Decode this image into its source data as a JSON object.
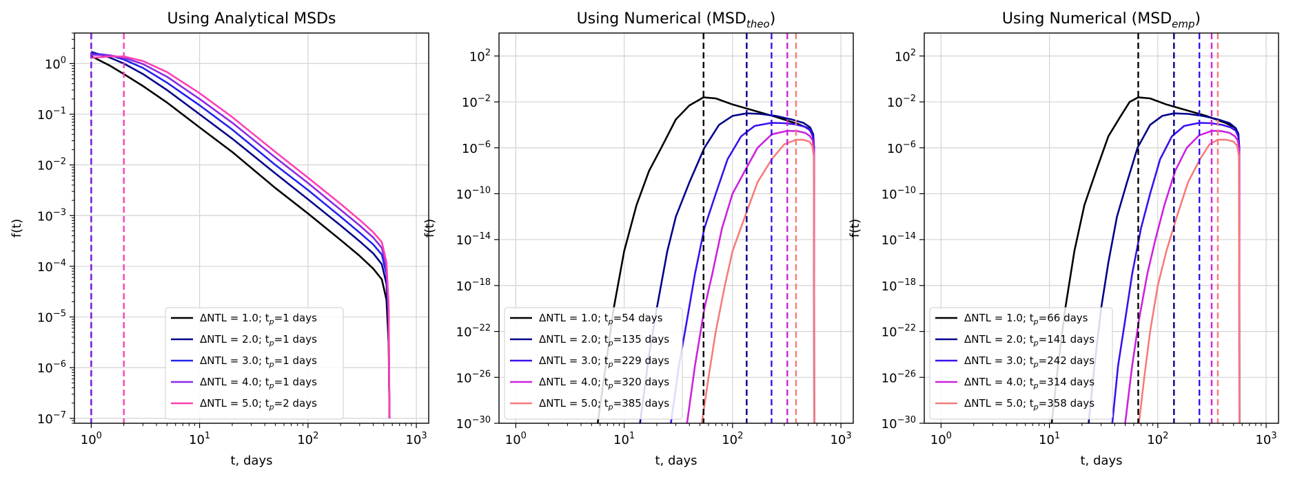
{
  "chart_data": [
    {
      "type": "line",
      "title": "Using Analytical MSDs",
      "title_main": "Using Analytical MSDs",
      "title_sub": "",
      "xlabel": "t, days",
      "ylabel": "f(t)",
      "xscale": "log",
      "yscale": "log",
      "xlim": [
        0.7,
        1300
      ],
      "ylim": [
        8e-08,
        4
      ],
      "xticks": [
        {
          "v": 1,
          "exp": "0"
        },
        {
          "v": 10,
          "exp": "1"
        },
        {
          "v": 100,
          "exp": "2"
        },
        {
          "v": 1000,
          "exp": "3"
        }
      ],
      "yticks": [
        {
          "v": 1e-07,
          "exp": "−7"
        },
        {
          "v": 1e-06,
          "exp": "−6"
        },
        {
          "v": 1e-05,
          "exp": "−5"
        },
        {
          "v": 0.0001,
          "exp": "−4"
        },
        {
          "v": 0.001,
          "exp": "−3"
        },
        {
          "v": 0.01,
          "exp": "−2"
        },
        {
          "v": 0.1,
          "exp": "−1"
        },
        {
          "v": 1,
          "exp": "0"
        }
      ],
      "grid": true,
      "legend_position": "lower-center",
      "series": [
        {
          "name": "ΔNTL = 1.0; tp=1 days",
          "label_main": "ΔNTL = 1.0; t",
          "label_tail": "=1 days",
          "color": "#000000",
          "peak": 1,
          "x": [
            1,
            1.5,
            2,
            3,
            5,
            10,
            20,
            50,
            100,
            200,
            300,
            400,
            480,
            530,
            555,
            565
          ],
          "y": [
            1.4,
            0.9,
            0.62,
            0.36,
            0.17,
            0.055,
            0.018,
            0.0035,
            0.0011,
            0.00033,
            0.00016,
            9e-05,
            5.5e-05,
            2.2e-05,
            3e-06,
            1e-07
          ]
        },
        {
          "name": "ΔNTL = 2.0; tp=1 days",
          "label_main": "ΔNTL = 2.0; t",
          "label_tail": "=1 days",
          "color": "#00008b",
          "peak": 1,
          "x": [
            1,
            1.5,
            2,
            3,
            5,
            10,
            20,
            50,
            100,
            200,
            300,
            400,
            480,
            530,
            555,
            565
          ],
          "y": [
            1.7,
            1.3,
            1.0,
            0.62,
            0.3,
            0.1,
            0.033,
            0.0068,
            0.0021,
            0.00064,
            0.00031,
            0.00018,
            0.00011,
            4.5e-05,
            6e-06,
            1e-07
          ]
        },
        {
          "name": "ΔNTL = 3.0; tp=1 days",
          "label_main": "ΔNTL = 3.0; t",
          "label_tail": "=1 days",
          "color": "#2222ee",
          "peak": 1,
          "x": [
            1,
            1.5,
            2,
            3,
            5,
            10,
            20,
            50,
            100,
            200,
            300,
            400,
            480,
            530,
            555,
            565
          ],
          "y": [
            1.6,
            1.45,
            1.2,
            0.82,
            0.42,
            0.15,
            0.05,
            0.01,
            0.0032,
            0.00095,
            0.00046,
            0.00027,
            0.00017,
            7e-05,
            1e-05,
            1e-07
          ]
        },
        {
          "name": "ΔNTL = 4.0; tp=1 days",
          "label_main": "ΔNTL = 4.0; t",
          "label_tail": "=1 days",
          "color": "#8a2be2",
          "peak": 1,
          "x": [
            1,
            1.5,
            2,
            3,
            5,
            10,
            20,
            50,
            100,
            200,
            300,
            400,
            480,
            530,
            555,
            565
          ],
          "y": [
            1.5,
            1.45,
            1.3,
            0.98,
            0.55,
            0.2,
            0.068,
            0.014,
            0.0044,
            0.0013,
            0.00064,
            0.00037,
            0.00023,
            9.5e-05,
            1.4e-05,
            1e-07
          ]
        },
        {
          "name": "ΔNTL = 5.0; tp=2 days",
          "label_main": "ΔNTL = 5.0; t",
          "label_tail": "=2 days",
          "color": "#ff3fb4",
          "peak": 2,
          "x": [
            1,
            1.5,
            2,
            3,
            5,
            10,
            20,
            50,
            100,
            200,
            300,
            400,
            480,
            530,
            555,
            565
          ],
          "y": [
            1.3,
            1.38,
            1.38,
            1.12,
            0.68,
            0.26,
            0.088,
            0.018,
            0.0056,
            0.0017,
            0.00082,
            0.00047,
            0.0003,
            0.00012,
            1.8e-05,
            1e-07
          ]
        }
      ]
    },
    {
      "type": "line",
      "title": "Using Numerical (MSDtheo)",
      "title_main": "Using Numerical (MSD",
      "title_sub": "theo",
      "xlabel": "t, days",
      "ylabel": "f(t)",
      "xscale": "log",
      "yscale": "log",
      "xlim": [
        0.7,
        1300
      ],
      "ylim": [
        1e-30,
        10000.0
      ],
      "xticks": [
        {
          "v": 1,
          "exp": "0"
        },
        {
          "v": 10,
          "exp": "1"
        },
        {
          "v": 100,
          "exp": "2"
        },
        {
          "v": 1000,
          "exp": "3"
        }
      ],
      "yticks": [
        {
          "v": 1e-30,
          "exp": "−30"
        },
        {
          "v": 1e-26,
          "exp": "−26"
        },
        {
          "v": 1e-22,
          "exp": "−22"
        },
        {
          "v": 1e-18,
          "exp": "−18"
        },
        {
          "v": 1e-14,
          "exp": "−14"
        },
        {
          "v": 1e-10,
          "exp": "−10"
        },
        {
          "v": 1e-06,
          "exp": "−6"
        },
        {
          "v": 0.01,
          "exp": "−2"
        },
        {
          "v": 100,
          "exp": "2"
        }
      ],
      "grid": true,
      "legend_position": "lower-left",
      "series": [
        {
          "name": "ΔNTL = 1.0; tp=54 days",
          "label_main": "ΔNTL = 1.0; t",
          "label_tail": "=54 days",
          "color": "#000000",
          "peak": 54,
          "x": [
            5.7,
            7,
            8,
            10,
            13,
            17,
            22,
            30,
            40,
            54,
            70,
            100,
            150,
            250,
            400,
            500,
            550,
            565,
            567
          ],
          "y": [
            1e-30,
            1e-24,
            1e-20,
            1e-15,
            1e-11,
            1e-08,
            1e-06,
            0.0003,
            0.005,
            0.025,
            0.02,
            0.006,
            0.002,
            0.0005,
            0.00012,
            5e-05,
            1.5e-05,
            1e-06,
            1e-30
          ]
        },
        {
          "name": "ΔNTL = 2.0; tp=135 days",
          "label_main": "ΔNTL = 2.0; t",
          "label_tail": "=135 days",
          "color": "#00008b",
          "peak": 135,
          "x": [
            14,
            17,
            20,
            25,
            30,
            40,
            55,
            75,
            100,
            135,
            180,
            250,
            350,
            450,
            520,
            555,
            565,
            567
          ],
          "y": [
            1e-30,
            1e-24,
            1e-20,
            1e-15,
            1e-12,
            1e-09,
            1e-06,
            0.0001,
            0.0006,
            0.001,
            0.0009,
            0.0006,
            0.0003,
            0.00015,
            6e-05,
            1.5e-05,
            1e-06,
            1e-30
          ]
        },
        {
          "name": "ΔNTL = 3.0; tp=229 days",
          "label_main": "ΔNTL = 3.0; t",
          "label_tail": "=229 days",
          "color": "#3a0ff0",
          "peak": 229,
          "x": [
            27,
            32,
            38,
            45,
            55,
            70,
            90,
            120,
            160,
            229,
            300,
            380,
            460,
            520,
            550,
            565,
            567
          ],
          "y": [
            1e-30,
            1e-25,
            1e-21,
            1e-17,
            1e-13,
            1e-10,
            1e-07,
            1e-05,
            8e-05,
            0.00015,
            0.00014,
            0.00011,
            7e-05,
            3.5e-05,
            1e-05,
            1e-06,
            1e-30
          ]
        },
        {
          "name": "ΔNTL = 4.0; tp=320 days",
          "label_main": "ΔNTL = 4.0; t",
          "label_tail": "=320 days",
          "color": "#cc22dd",
          "peak": 320,
          "x": [
            38,
            45,
            55,
            65,
            80,
            100,
            130,
            170,
            230,
            320,
            400,
            470,
            520,
            550,
            565,
            567
          ],
          "y": [
            1e-30,
            1e-25,
            1e-20,
            1e-17,
            1e-13,
            1e-10,
            1e-08,
            1e-06,
            1.5e-05,
            3e-05,
            2.8e-05,
            2e-05,
            1e-05,
            4e-06,
            5e-07,
            1e-30
          ]
        },
        {
          "name": "ΔNTL = 5.0; tp=385 days",
          "label_main": "ΔNTL = 5.0; t",
          "label_tail": "=385 days",
          "color": "#f77b7b",
          "peak": 385,
          "x": [
            52,
            60,
            70,
            85,
            100,
            130,
            170,
            230,
            300,
            385,
            450,
            510,
            545,
            562,
            567
          ],
          "y": [
            1e-30,
            1e-26,
            1e-22,
            1e-18,
            1e-15,
            1e-12,
            1e-09,
            1e-07,
            2e-06,
            5e-06,
            5e-06,
            3.5e-06,
            1.5e-06,
            2e-07,
            1e-30
          ]
        }
      ]
    },
    {
      "type": "line",
      "title": "Using Numerical (MSDemp)",
      "title_main": "Using Numerical (MSD",
      "title_sub": "emp",
      "xlabel": "t, days",
      "ylabel": "f(t)",
      "xscale": "log",
      "yscale": "log",
      "xlim": [
        0.7,
        1300
      ],
      "ylim": [
        1e-30,
        10000.0
      ],
      "xticks": [
        {
          "v": 1,
          "exp": "0"
        },
        {
          "v": 10,
          "exp": "1"
        },
        {
          "v": 100,
          "exp": "2"
        },
        {
          "v": 1000,
          "exp": "3"
        }
      ],
      "yticks": [
        {
          "v": 1e-30,
          "exp": "−30"
        },
        {
          "v": 1e-26,
          "exp": "−26"
        },
        {
          "v": 1e-22,
          "exp": "−22"
        },
        {
          "v": 1e-18,
          "exp": "−18"
        },
        {
          "v": 1e-14,
          "exp": "−14"
        },
        {
          "v": 1e-10,
          "exp": "−10"
        },
        {
          "v": 1e-06,
          "exp": "−6"
        },
        {
          "v": 0.01,
          "exp": "−2"
        },
        {
          "v": 100,
          "exp": "2"
        }
      ],
      "grid": true,
      "legend_position": "lower-left",
      "series": [
        {
          "name": "ΔNTL = 1.0; tp=66 days",
          "label_main": "ΔNTL = 1.0; t",
          "label_tail": "=66 days",
          "color": "#000000",
          "peak": 66,
          "x": [
            10.5,
            12,
            14,
            17,
            21,
            27,
            35,
            45,
            55,
            66,
            85,
            120,
            180,
            280,
            420,
            510,
            550,
            565,
            567
          ],
          "y": [
            1e-30,
            1e-25,
            1e-20,
            1e-15,
            1e-11,
            1e-08,
            1e-05,
            0.0005,
            0.01,
            0.025,
            0.02,
            0.006,
            0.002,
            0.0006,
            0.00015,
            6e-05,
            2e-05,
            1e-06,
            1e-30
          ]
        },
        {
          "name": "ΔNTL = 2.0; tp=141 days",
          "label_main": "ΔNTL = 2.0; t",
          "label_tail": "=141 days",
          "color": "#00008b",
          "peak": 141,
          "x": [
            23,
            26,
            30,
            35,
            42,
            52,
            65,
            85,
            110,
            141,
            190,
            260,
            360,
            460,
            525,
            555,
            565,
            567
          ],
          "y": [
            1e-30,
            1e-25,
            1e-20,
            1e-16,
            1e-12,
            1e-09,
            1e-06,
            0.0001,
            0.0006,
            0.001,
            0.0009,
            0.0006,
            0.0003,
            0.00014,
            5e-05,
            1.5e-05,
            1e-06,
            1e-30
          ]
        },
        {
          "name": "ΔNTL = 3.0; tp=242 days",
          "label_main": "ΔNTL = 3.0; t",
          "label_tail": "=242 days",
          "color": "#3a0ff0",
          "peak": 242,
          "x": [
            38,
            43,
            50,
            58,
            70,
            85,
            105,
            135,
            175,
            242,
            310,
            390,
            470,
            525,
            552,
            565,
            567
          ],
          "y": [
            1e-30,
            1e-25,
            1e-21,
            1e-17,
            1e-13,
            1e-10,
            1e-07,
            1e-05,
            8e-05,
            0.00015,
            0.00014,
            0.0001,
            6e-05,
            3e-05,
            1e-05,
            1e-06,
            1e-30
          ]
        },
        {
          "name": "ΔNTL = 4.0; tp=314 days",
          "label_main": "ΔNTL = 4.0; t",
          "label_tail": "=314 days",
          "color": "#cc22dd",
          "peak": 314,
          "x": [
            50,
            58,
            67,
            80,
            95,
            115,
            145,
            185,
            240,
            314,
            390,
            460,
            515,
            548,
            565,
            567
          ],
          "y": [
            1e-30,
            1e-25,
            1e-21,
            1e-17,
            1e-14,
            1e-11,
            1e-08,
            1e-06,
            1.2e-05,
            3e-05,
            2.8e-05,
            2e-05,
            1e-05,
            4e-06,
            5e-07,
            1e-30
          ]
        },
        {
          "name": "ΔNTL = 5.0; tp=358 days",
          "label_main": "ΔNTL = 5.0; t",
          "label_tail": "=358 days",
          "color": "#f77b7b",
          "peak": 358,
          "x": [
            67,
            75,
            85,
            100,
            120,
            150,
            190,
            245,
            300,
            358,
            430,
            500,
            540,
            560,
            567
          ],
          "y": [
            1e-30,
            1e-26,
            1e-22,
            1e-18,
            1e-15,
            1e-12,
            1e-09,
            1e-07,
            2e-06,
            5e-06,
            5e-06,
            3.5e-06,
            1.5e-06,
            2e-07,
            1e-30
          ]
        }
      ]
    }
  ]
}
